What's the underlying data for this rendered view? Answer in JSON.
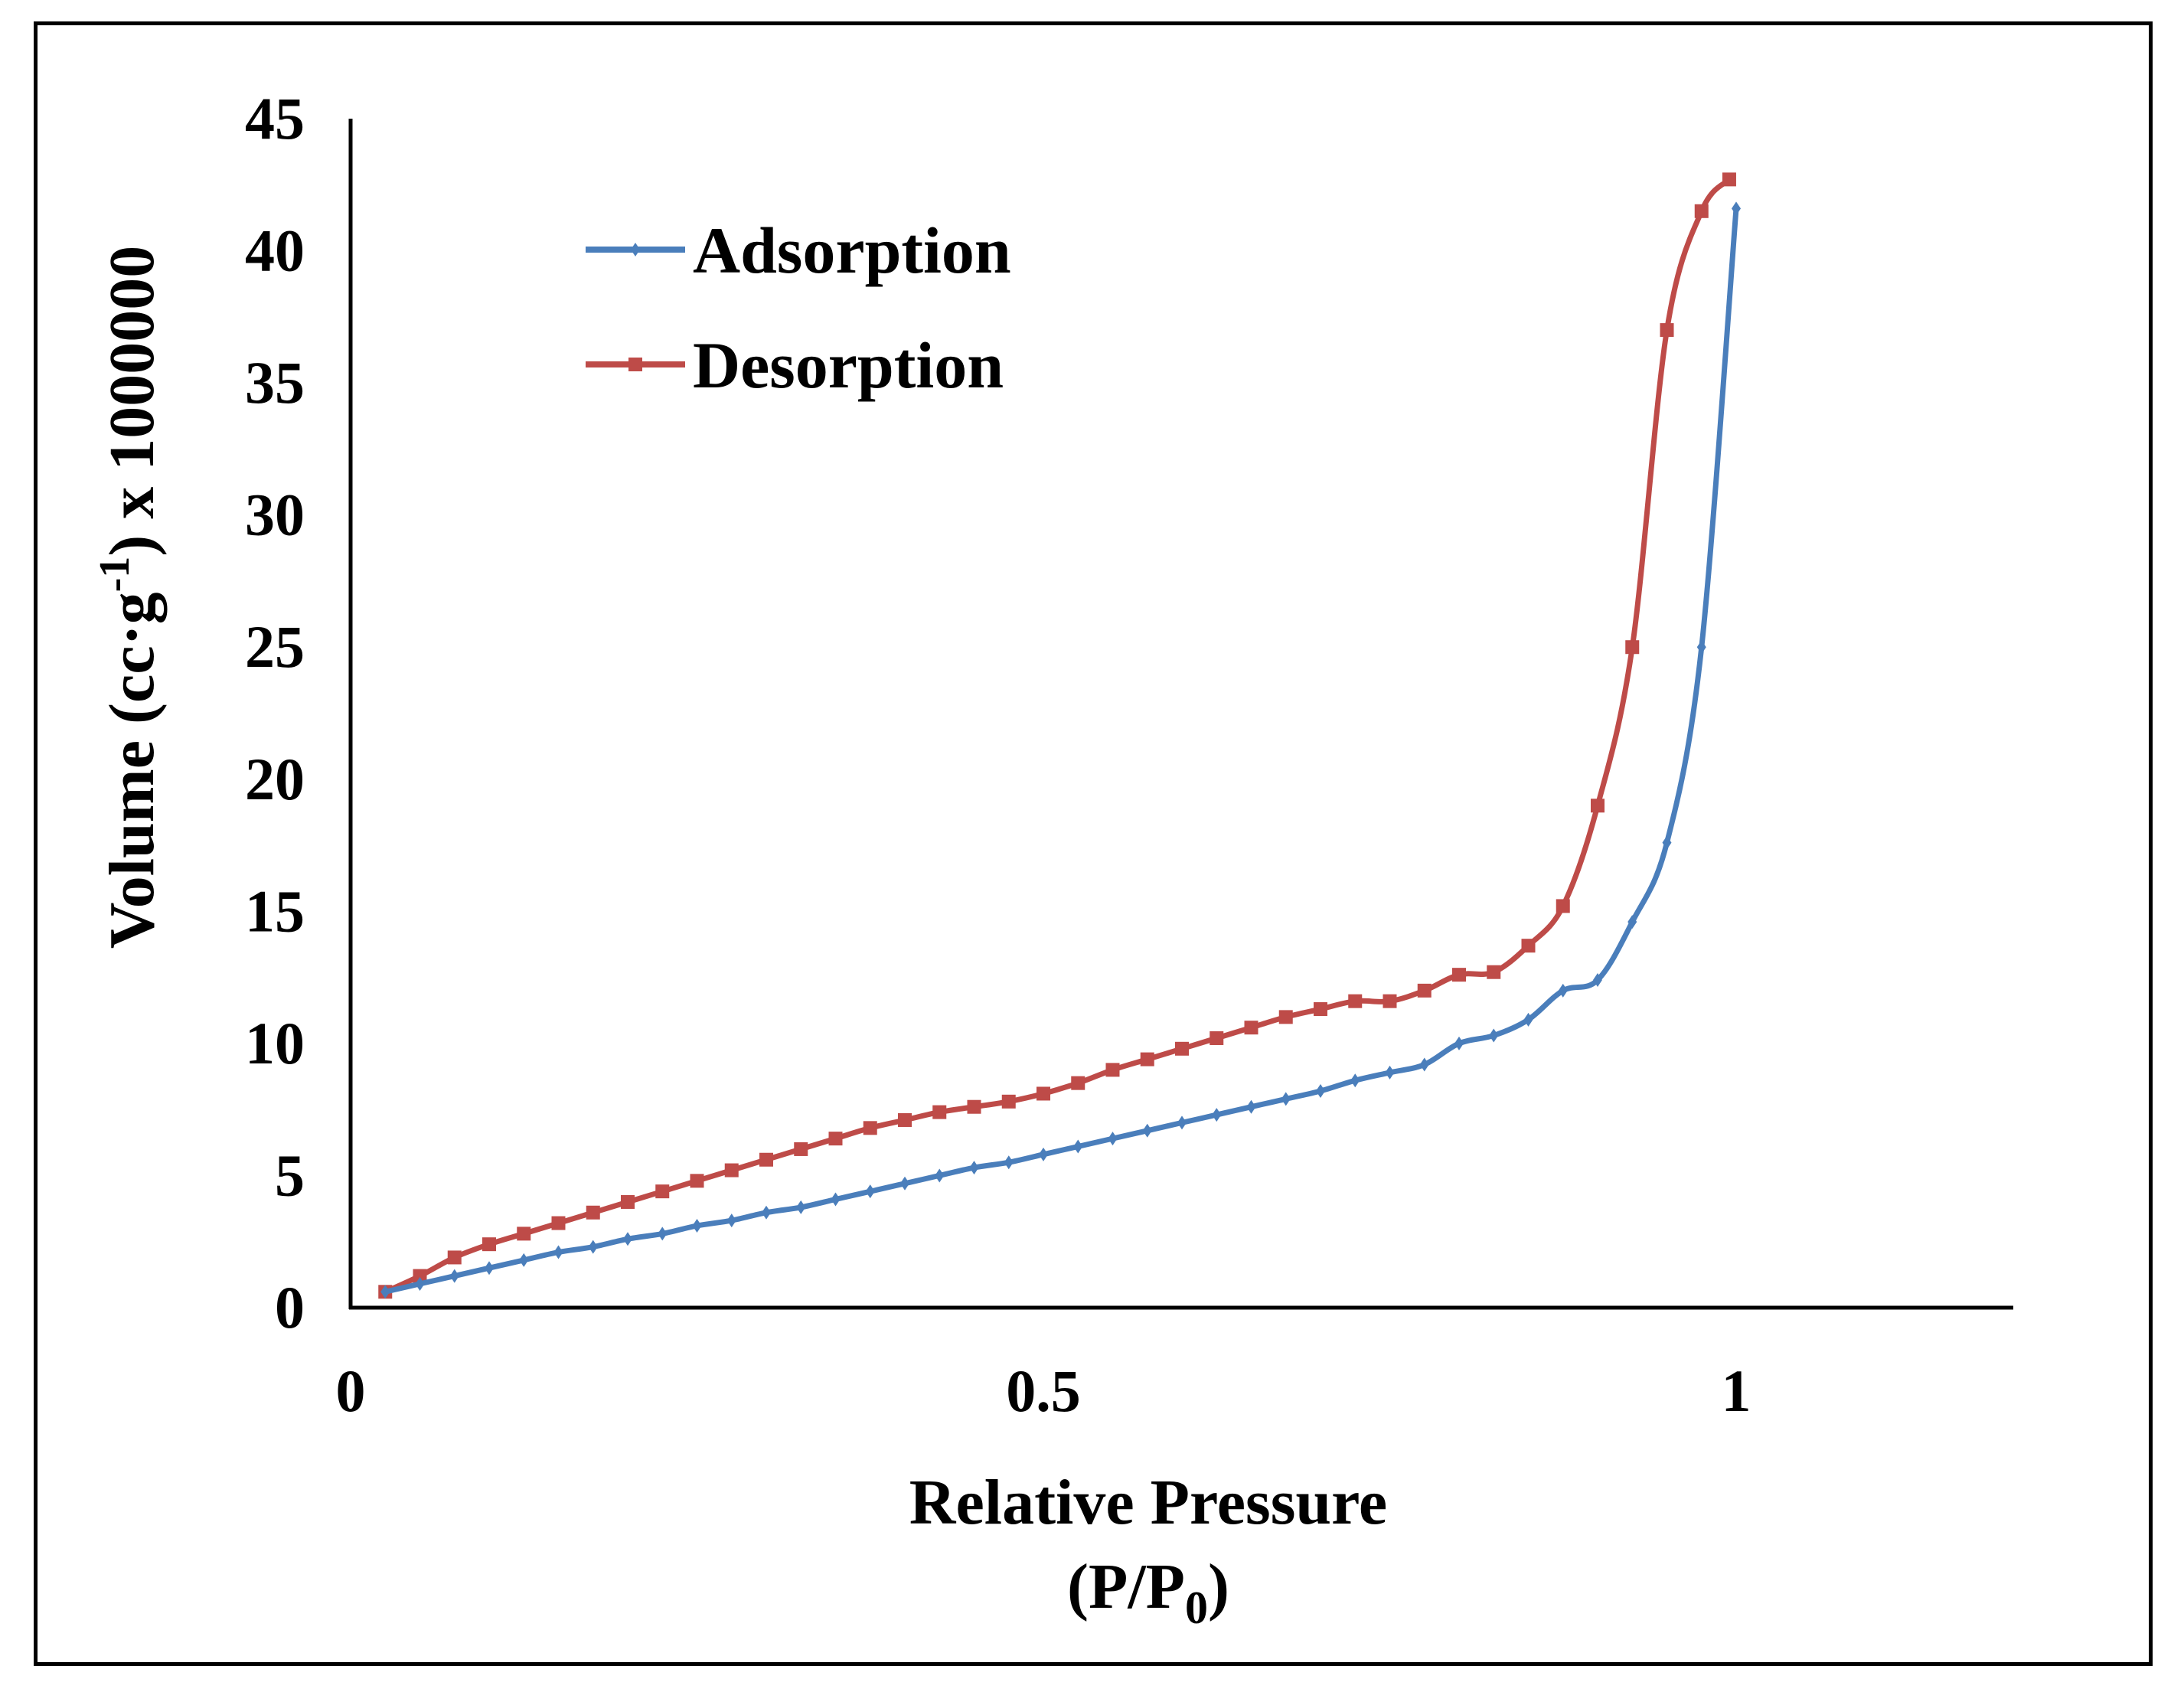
{
  "chart_data": {
    "type": "line",
    "title": "",
    "xlabel": "Relative Pressure",
    "xlabel_sub": {
      "prefix": "(P/P",
      "subscript": "0",
      "suffix": ")"
    },
    "ylabel": {
      "prefix": "Volume (cc·g",
      "superscript": "-1",
      "suffix": ") x 1000000"
    },
    "xlim": [
      0,
      1.2
    ],
    "ylim": [
      0,
      45
    ],
    "xticks": [
      0,
      0.5,
      1
    ],
    "xtick_labels": [
      "0",
      "0.5",
      "1"
    ],
    "yticks": [
      0,
      5,
      10,
      15,
      20,
      25,
      30,
      35,
      40,
      45
    ],
    "ytick_labels": [
      "0",
      "5",
      "10",
      "15",
      "20",
      "25",
      "30",
      "35",
      "40",
      "45"
    ],
    "legend_position": "top-left",
    "grid": false,
    "series": [
      {
        "name": "Adsorption",
        "color": "#4a7ebb",
        "marker": "diamond",
        "x": [
          0.025,
          0.05,
          0.075,
          0.1,
          0.125,
          0.15,
          0.175,
          0.2,
          0.225,
          0.25,
          0.275,
          0.3,
          0.325,
          0.35,
          0.375,
          0.4,
          0.425,
          0.45,
          0.475,
          0.5,
          0.525,
          0.55,
          0.575,
          0.6,
          0.625,
          0.65,
          0.675,
          0.7,
          0.725,
          0.75,
          0.775,
          0.8,
          0.825,
          0.85,
          0.875,
          0.9,
          0.925,
          0.95,
          0.975,
          1.0
        ],
        "y": [
          0.6,
          0.9,
          1.2,
          1.5,
          1.8,
          2.1,
          2.3,
          2.6,
          2.8,
          3.1,
          3.3,
          3.6,
          3.8,
          4.1,
          4.4,
          4.7,
          5.0,
          5.3,
          5.5,
          5.8,
          6.1,
          6.4,
          6.7,
          7.0,
          7.3,
          7.6,
          7.9,
          8.2,
          8.6,
          8.9,
          9.2,
          10.0,
          10.3,
          10.9,
          12.0,
          12.4,
          14.6,
          17.6,
          25.0,
          41.6
        ]
      },
      {
        "name": "Desorption",
        "color": "#be4b48",
        "marker": "square",
        "x": [
          0.025,
          0.05,
          0.075,
          0.1,
          0.125,
          0.15,
          0.175,
          0.2,
          0.225,
          0.25,
          0.275,
          0.3,
          0.325,
          0.35,
          0.375,
          0.4,
          0.425,
          0.45,
          0.475,
          0.5,
          0.525,
          0.55,
          0.575,
          0.6,
          0.625,
          0.65,
          0.675,
          0.7,
          0.725,
          0.75,
          0.775,
          0.8,
          0.825,
          0.85,
          0.875,
          0.9,
          0.925,
          0.95,
          0.975,
          0.995
        ],
        "y": [
          0.6,
          1.2,
          1.9,
          2.4,
          2.8,
          3.2,
          3.6,
          4.0,
          4.4,
          4.8,
          5.2,
          5.6,
          6.0,
          6.4,
          6.8,
          7.1,
          7.4,
          7.6,
          7.8,
          8.1,
          8.5,
          9.0,
          9.4,
          9.8,
          10.2,
          10.6,
          11.0,
          11.3,
          11.6,
          11.6,
          12.0,
          12.6,
          12.7,
          13.7,
          15.2,
          19.0,
          25.0,
          37.0,
          41.5,
          42.7
        ]
      }
    ]
  }
}
